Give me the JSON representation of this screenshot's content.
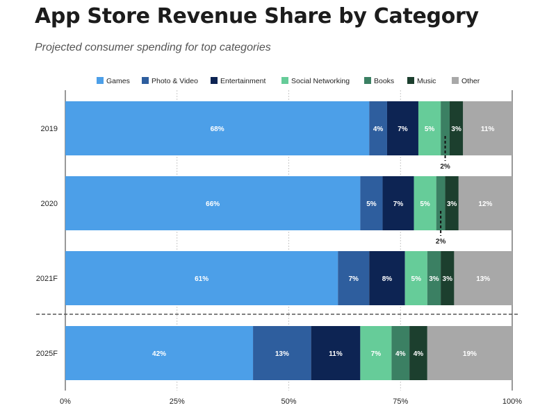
{
  "title": "App Store Revenue Share by Category",
  "subtitle": "Projected consumer spending for top categories",
  "chart_data": {
    "type": "bar",
    "orientation": "horizontal",
    "stacked": true,
    "title": "App Store Revenue Share by Category",
    "subtitle": "Projected consumer spending for top categories",
    "categories": [
      "2019",
      "2020",
      "2021F",
      "2025F"
    ],
    "series": [
      {
        "name": "Games",
        "color": "#4c9fe8",
        "values": [
          68,
          66,
          61,
          42
        ]
      },
      {
        "name": "Photo & Video",
        "color": "#2e5e9e",
        "values": [
          4,
          5,
          7,
          13
        ]
      },
      {
        "name": "Entertainment",
        "color": "#0d2453",
        "values": [
          7,
          7,
          8,
          11
        ]
      },
      {
        "name": "Social Networking",
        "color": "#66cc99",
        "values": [
          5,
          5,
          5,
          7
        ]
      },
      {
        "name": "Books",
        "color": "#3b8063",
        "values": [
          2,
          2,
          3,
          4
        ]
      },
      {
        "name": "Music",
        "color": "#1c3f2e",
        "values": [
          3,
          3,
          3,
          4
        ]
      },
      {
        "name": "Other",
        "color": "#a8a8a8",
        "values": [
          11,
          12,
          13,
          19
        ]
      }
    ],
    "data_labels": [
      [
        "68%",
        "4%",
        "7%",
        "5%",
        "",
        "3%",
        "11%"
      ],
      [
        "66%",
        "5%",
        "7%",
        "5%",
        "",
        "3%",
        "12%"
      ],
      [
        "61%",
        "7%",
        "8%",
        "5%",
        "3%",
        "3%",
        "13%"
      ],
      [
        "42%",
        "13%",
        "11%",
        "7%",
        "4%",
        "4%",
        "19%"
      ]
    ],
    "annotations": [
      {
        "category": "2019",
        "series": "Books",
        "label": "2%"
      },
      {
        "category": "2020",
        "series": "Books",
        "label": "2%"
      }
    ],
    "x_ticks": [
      "0%",
      "25%",
      "50%",
      "75%",
      "100%"
    ],
    "xlim": [
      0,
      100
    ],
    "grid": true,
    "legend": "top",
    "separator_after_category": "2021F"
  }
}
